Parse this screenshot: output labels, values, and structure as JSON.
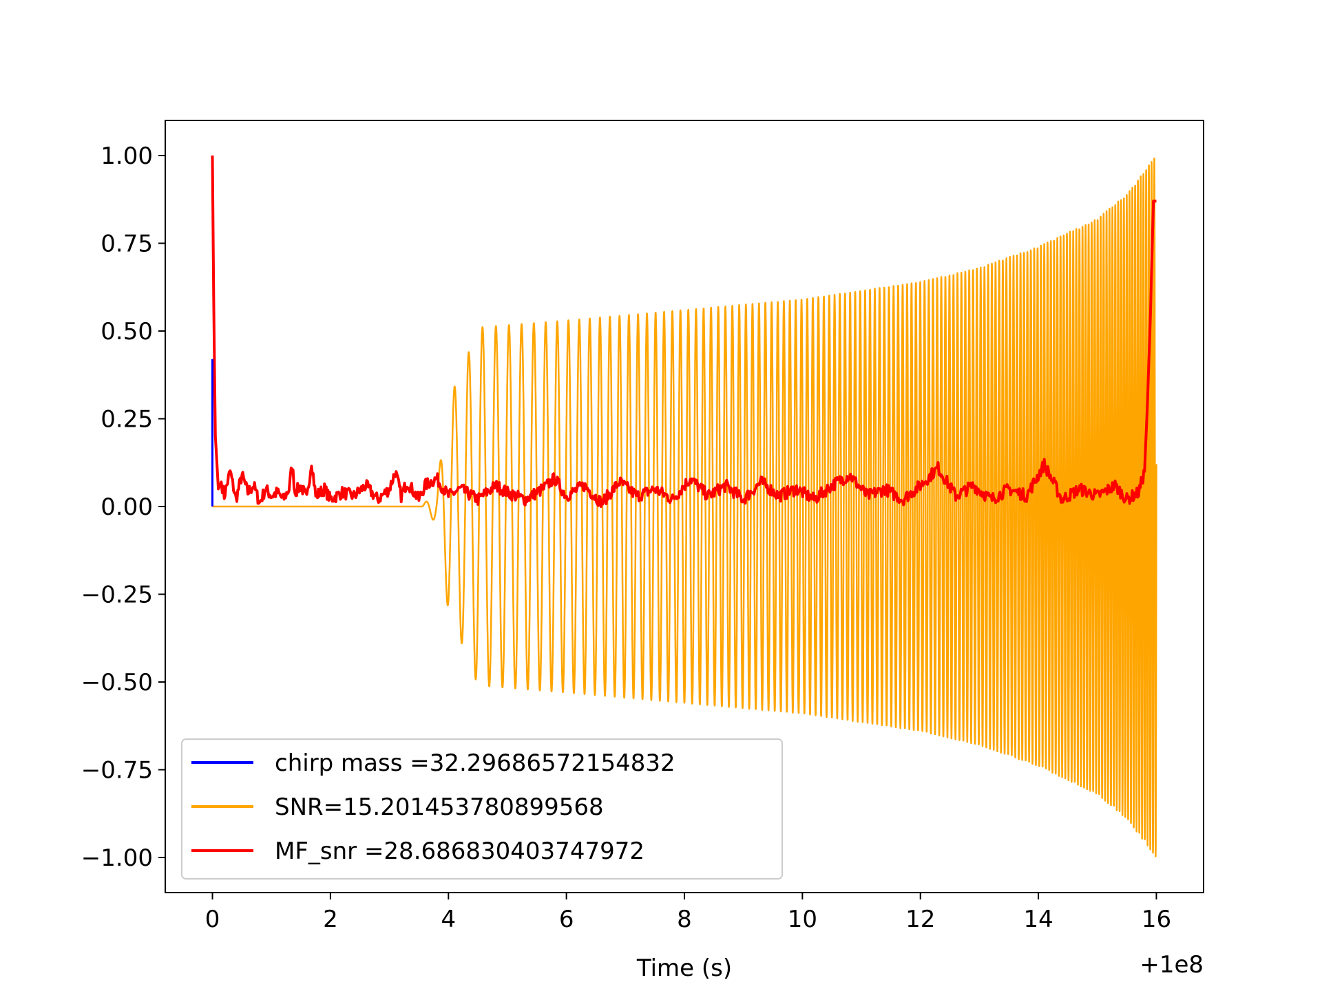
{
  "chart_data": {
    "type": "line",
    "title": "",
    "xlabel": "Time (s)",
    "ylabel": "",
    "x_offset_label": "+1e8",
    "xlim": [
      -0.8,
      16.8
    ],
    "ylim": [
      -1.1,
      1.1
    ],
    "x_ticks": [
      0,
      2,
      4,
      6,
      8,
      10,
      12,
      14,
      16
    ],
    "y_ticks": [
      -1.0,
      -0.75,
      -0.5,
      -0.25,
      0.0,
      0.25,
      0.5,
      0.75,
      1.0
    ],
    "x_tick_labels": [
      "0",
      "2",
      "4",
      "6",
      "8",
      "10",
      "12",
      "14",
      "16"
    ],
    "y_tick_labels": [
      "−1.00",
      "−0.75",
      "−0.50",
      "−0.25",
      "0.00",
      "0.25",
      "0.50",
      "0.75",
      "1.00"
    ],
    "legend_position": "lower-left",
    "series": [
      {
        "name": "chirp mass =32.29686572154832",
        "color": "#0000ff",
        "x": [
          0.0,
          0.0,
          0.0
        ],
        "y": [
          0.0,
          0.42,
          0.0
        ]
      },
      {
        "name": "SNR=15.201453780899568",
        "color": "#ffa500",
        "signal": {
          "start": 3.55,
          "end": 16.0,
          "flat_before": 0.0,
          "envelope_x": [
            3.55,
            3.8,
            4.0,
            4.3,
            4.5,
            6.0,
            8.0,
            10.0,
            12.0,
            13.0,
            14.0,
            15.0,
            15.5,
            16.0
          ],
          "envelope_y": [
            0.0,
            0.05,
            0.3,
            0.42,
            0.51,
            0.53,
            0.56,
            0.59,
            0.64,
            0.68,
            0.74,
            0.82,
            0.89,
            1.0
          ],
          "negative_scale": 1.0,
          "cycles_per_second_start": 4.0,
          "cycles_per_second_end": 22.0
        }
      },
      {
        "name": "MF_snr =28.686830403747972",
        "color": "#ff0000",
        "x": [
          0.0,
          0.02,
          0.05,
          0.1,
          0.15,
          0.2,
          0.3,
          0.4,
          0.5,
          0.6,
          0.7,
          0.8,
          0.9,
          1.0,
          1.1,
          1.2,
          1.3,
          1.35,
          1.4,
          1.5,
          1.6,
          1.68,
          1.75,
          1.9,
          2.0,
          2.2,
          2.4,
          2.6,
          2.8,
          3.0,
          3.1,
          3.2,
          3.3,
          3.5,
          3.6,
          3.8,
          4.0,
          4.2,
          4.5,
          4.8,
          5.0,
          5.3,
          5.6,
          5.8,
          6.0,
          6.3,
          6.6,
          6.9,
          7.2,
          7.5,
          7.8,
          8.1,
          8.4,
          8.7,
          9.0,
          9.3,
          9.6,
          9.9,
          10.2,
          10.5,
          10.8,
          11.1,
          11.4,
          11.7,
          12.0,
          12.3,
          12.6,
          12.9,
          13.2,
          13.5,
          13.8,
          14.1,
          14.4,
          14.7,
          15.0,
          15.3,
          15.5,
          15.7,
          15.8,
          15.85,
          15.9,
          15.95,
          16.0
        ],
        "y": [
          1.0,
          0.6,
          0.2,
          0.05,
          0.07,
          0.03,
          0.1,
          0.02,
          0.09,
          0.04,
          0.06,
          0.01,
          0.05,
          0.03,
          0.04,
          0.02,
          0.05,
          0.12,
          0.04,
          0.06,
          0.02,
          0.13,
          0.03,
          0.05,
          0.02,
          0.04,
          0.03,
          0.06,
          0.02,
          0.05,
          0.1,
          0.03,
          0.07,
          0.02,
          0.06,
          0.08,
          0.03,
          0.05,
          0.02,
          0.06,
          0.04,
          0.02,
          0.05,
          0.08,
          0.03,
          0.06,
          0.01,
          0.07,
          0.03,
          0.05,
          0.02,
          0.08,
          0.03,
          0.06,
          0.02,
          0.07,
          0.03,
          0.05,
          0.02,
          0.06,
          0.09,
          0.03,
          0.05,
          0.02,
          0.06,
          0.11,
          0.03,
          0.06,
          0.02,
          0.05,
          0.03,
          0.12,
          0.02,
          0.05,
          0.03,
          0.06,
          0.02,
          0.04,
          0.1,
          0.3,
          0.55,
          0.87,
          0.87
        ]
      }
    ]
  }
}
